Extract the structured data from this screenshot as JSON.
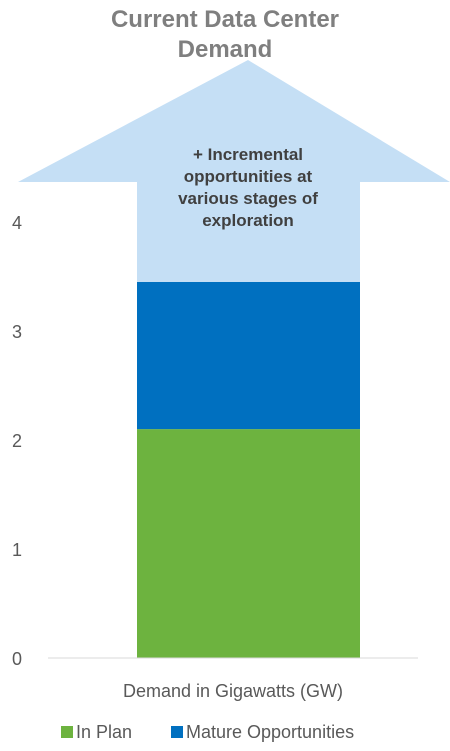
{
  "chart_data": {
    "type": "bar",
    "stacked": true,
    "title_lines": [
      "Current Data Center",
      "Demand"
    ],
    "categories": [
      "Demand in Gigawatts (GW)"
    ],
    "series": [
      {
        "name": "In Plan",
        "values": [
          2.1
        ],
        "color": "#6db33f"
      },
      {
        "name": "Mature Opportunities",
        "values": [
          1.35
        ],
        "color": "#0070c0"
      }
    ],
    "y_ticks": [
      0,
      1,
      2,
      3,
      4
    ],
    "ylim": [
      0,
      4.5
    ],
    "grid": false,
    "legend_position": "bottom",
    "arrow_annotation": {
      "lines": [
        "+ Incremental",
        "opportunities at",
        "various stages of",
        "exploration"
      ],
      "color": "#c5dff5"
    }
  }
}
